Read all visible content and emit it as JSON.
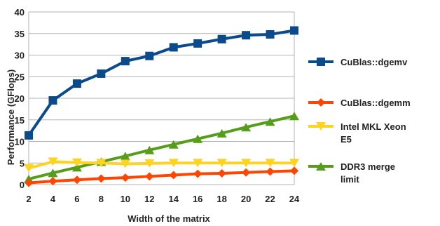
{
  "chart_data": {
    "type": "line",
    "title": "",
    "xlabel": "Width of the matrix",
    "ylabel": "Performance (GFlops)",
    "x": [
      2,
      4,
      6,
      8,
      10,
      12,
      14,
      16,
      18,
      20,
      22,
      24
    ],
    "ylim": [
      0,
      40
    ],
    "y_ticks": [
      0,
      5,
      10,
      15,
      20,
      25,
      30,
      35,
      40
    ],
    "grid": "horizontal",
    "legend_position": "right",
    "series": [
      {
        "name": "CuBlas::dgemv",
        "legend_lines": [
          "CuBlas::dgemv"
        ],
        "marker": "square",
        "color": "#0B4A8B",
        "values": [
          11.4,
          19.5,
          23.4,
          25.7,
          28.6,
          29.8,
          31.8,
          32.7,
          33.7,
          34.6,
          34.8,
          35.7
        ]
      },
      {
        "name": "CuBlas::dgemm",
        "legend_lines": [
          "CuBlas::dgemm"
        ],
        "marker": "diamond",
        "color": "#FF4500",
        "values": [
          0.4,
          0.8,
          1.1,
          1.4,
          1.6,
          1.9,
          2.2,
          2.5,
          2.6,
          2.8,
          3.0,
          3.2
        ]
      },
      {
        "name": "Intel MKL Xeon E5",
        "legend_lines": [
          "Intel MKL Xeon",
          "E5"
        ],
        "marker": "triangle-down",
        "color": "#FFD320",
        "values": [
          3.8,
          5.3,
          5.1,
          5.0,
          4.8,
          4.9,
          5.0,
          5.0,
          5.0,
          5.0,
          5.0,
          5.0
        ]
      },
      {
        "name": "DDR3 merge limit",
        "legend_lines": [
          "DDR3 merge",
          "limit"
        ],
        "marker": "triangle-up",
        "color": "#579D1C",
        "values": [
          1.3,
          2.7,
          4.0,
          5.3,
          6.6,
          8.0,
          9.3,
          10.6,
          11.9,
          13.3,
          14.6,
          15.9
        ]
      }
    ]
  }
}
